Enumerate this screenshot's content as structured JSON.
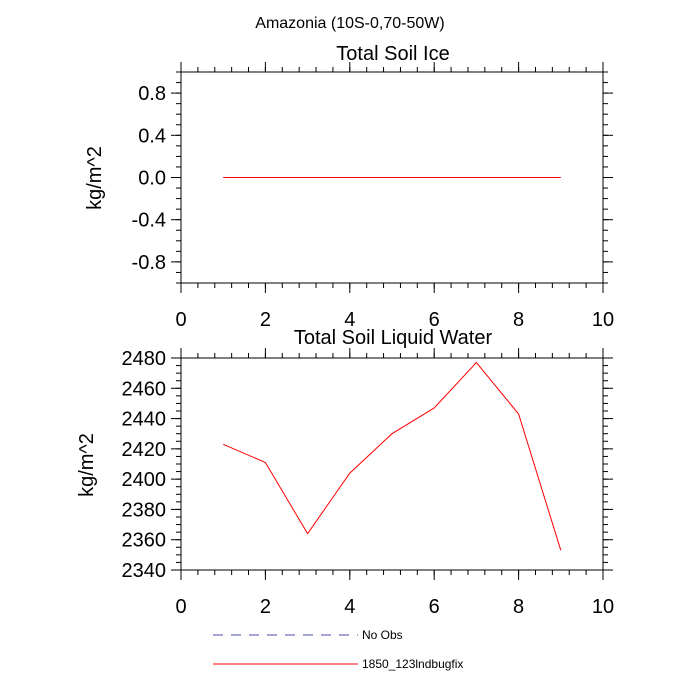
{
  "figure": {
    "title": "Amazonia (10S-0,70-50W)"
  },
  "chart_data": [
    {
      "type": "line",
      "title": "Total Soil Ice",
      "xlabel": "",
      "ylabel": "kg/m^2",
      "xlim": [
        0,
        10
      ],
      "ylim": [
        -1,
        1
      ],
      "xticks": [
        0,
        2,
        4,
        6,
        8,
        10
      ],
      "xtick_labels": [
        "0",
        "2",
        "4",
        "6",
        "8",
        "10"
      ],
      "yticks": [
        -0.8,
        -0.4,
        0.0,
        0.4,
        0.8
      ],
      "ytick_labels": [
        "-0.8",
        "-0.4",
        "0.0",
        "0.4",
        "0.8"
      ],
      "x_minor_step": 0.4,
      "y_minor_step": 0.1,
      "series": [
        {
          "name": "1850_123lndbugfix",
          "color": "#ff0000",
          "x": [
            1,
            2,
            3,
            4,
            5,
            6,
            7,
            8,
            9
          ],
          "values": [
            0,
            0,
            0,
            0,
            0,
            0,
            0,
            0,
            0
          ]
        }
      ]
    },
    {
      "type": "line",
      "title": "Total Soil Liquid Water",
      "xlabel": "",
      "ylabel": "kg/m^2",
      "xlim": [
        0,
        10
      ],
      "ylim": [
        2340,
        2480
      ],
      "xticks": [
        0,
        2,
        4,
        6,
        8,
        10
      ],
      "xtick_labels": [
        "0",
        "2",
        "4",
        "6",
        "8",
        "10"
      ],
      "yticks": [
        2340,
        2360,
        2380,
        2400,
        2420,
        2440,
        2460,
        2480
      ],
      "ytick_labels": [
        "2340",
        "2360",
        "2380",
        "2400",
        "2420",
        "2440",
        "2460",
        "2480"
      ],
      "x_minor_step": 0.4,
      "y_minor_step": 5,
      "series": [
        {
          "name": "1850_123lndbugfix",
          "color": "#ff0000",
          "x": [
            1,
            2,
            3,
            4,
            5,
            6,
            7,
            8,
            9
          ],
          "values": [
            2423,
            2411,
            2364,
            2404,
            2430,
            2447,
            2477,
            2443,
            2353
          ]
        }
      ]
    }
  ],
  "legend": {
    "items": [
      {
        "label": "No Obs",
        "color": "#4b4bb4",
        "style": "dashed"
      },
      {
        "label": "1850_123lndbugfix",
        "color": "#ff0000",
        "style": "solid"
      }
    ]
  }
}
